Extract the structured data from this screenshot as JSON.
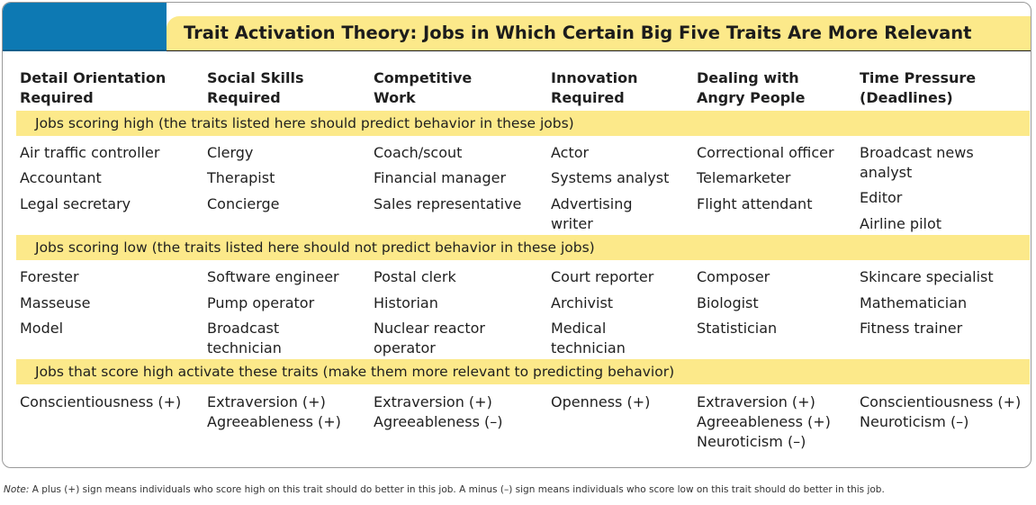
{
  "title": "Trait Activation Theory: Jobs in Which Certain Big Five Traits Are More Relevant",
  "columns": [
    [
      "Detail Orientation",
      "Required"
    ],
    [
      "Social Skills",
      "Required"
    ],
    [
      "Competitive",
      "Work"
    ],
    [
      "Innovation",
      "Required"
    ],
    [
      "Dealing with",
      "Angry People"
    ],
    [
      "Time Pressure",
      "(Deadlines)"
    ]
  ],
  "sections": {
    "high": "Jobs scoring high (the traits listed here should predict behavior in these jobs)",
    "low": "Jobs scoring low (the traits listed here should not predict behavior in these jobs)",
    "activate": "Jobs that score high activate these traits (make them more relevant to predicting behavior)"
  },
  "high_jobs": [
    [
      "Air traffic controller",
      "Accountant",
      "Legal secretary"
    ],
    [
      "Clergy",
      "Therapist",
      "Concierge"
    ],
    [
      "Coach/scout",
      "Financial manager",
      "Sales representative"
    ],
    [
      "Actor",
      "Systems analyst",
      "Advertising",
      "writer"
    ],
    [
      "Correctional officer",
      "Telemarketer",
      "Flight attendant"
    ],
    [
      "Broadcast news",
      "analyst",
      "Editor",
      "Airline pilot"
    ]
  ],
  "low_jobs": [
    [
      "Forester",
      "Masseuse",
      "Model"
    ],
    [
      "Software engineer",
      "Pump operator",
      "Broadcast",
      "technician"
    ],
    [
      "Postal clerk",
      "Historian",
      "Nuclear reactor",
      "operator"
    ],
    [
      "Court reporter",
      "Archivist",
      "Medical",
      "technician"
    ],
    [
      "Composer",
      "Biologist",
      "Statistician"
    ],
    [
      "Skincare specialist",
      "Mathematician",
      "Fitness trainer"
    ]
  ],
  "traits": [
    [
      "Conscientiousness (+)"
    ],
    [
      "Extraversion (+)",
      "Agreeableness (+)"
    ],
    [
      "Extraversion (+)",
      "Agreeableness (–)"
    ],
    [
      "Openness (+)"
    ],
    [
      "Extraversion (+)",
      "Agreeableness (+)",
      "Neuroticism (–)"
    ],
    [
      "Conscientiousness (+)",
      "Neuroticism (–)"
    ]
  ],
  "note": {
    "label": "Note:",
    "text": " A plus (+) sign means individuals who score high on this trait should do better in this job. A minus (–) sign means individuals who score low on this trait should do better in this job."
  },
  "colors": {
    "accent_blue": "#0d79b3",
    "highlight_yellow": "#fce98a"
  }
}
